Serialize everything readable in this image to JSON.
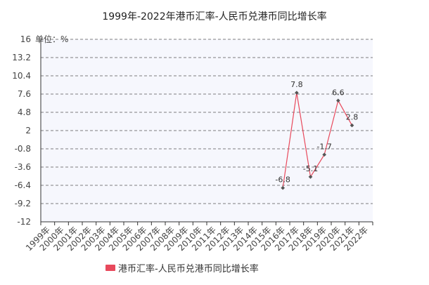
{
  "chart_data": {
    "type": "line",
    "title": "1999年-2022年港币汇率-人民币兑港币同比增长率",
    "unit_label": "单位：%",
    "categories": [
      "1999年",
      "2000年",
      "2001年",
      "2002年",
      "2003年",
      "2004年",
      "2005年",
      "2006年",
      "2007年",
      "2008年",
      "2009年",
      "2010年",
      "2011年",
      "2012年",
      "2013年",
      "2014年",
      "2015年",
      "2016年",
      "2017年",
      "2018年",
      "2019年",
      "2020年",
      "2021年",
      "2022年"
    ],
    "series": [
      {
        "name": "港币汇率-人民币兑港币同比增长率",
        "values": [
          null,
          null,
          null,
          null,
          null,
          null,
          null,
          null,
          null,
          null,
          null,
          null,
          null,
          null,
          null,
          null,
          null,
          -6.8,
          7.8,
          -5.1,
          -1.7,
          6.6,
          2.8,
          null
        ],
        "data_labels": [
          null,
          null,
          null,
          null,
          null,
          null,
          null,
          null,
          null,
          null,
          null,
          null,
          null,
          null,
          null,
          null,
          null,
          "-6.8",
          "7.8",
          "-5.1",
          "-1.7",
          "6.6",
          "2.8",
          null
        ]
      }
    ],
    "y_ticks": [
      "16",
      "13.2",
      "10.4",
      "7.6",
      "4.8",
      "2",
      "-0.8",
      "-3.6",
      "-6.4",
      "-9.2",
      "-12"
    ],
    "ylim": [
      -12,
      16
    ],
    "grid": true,
    "legend_position": "bottom-left",
    "colors": {
      "line": "#e8495c",
      "point": "#555555",
      "grid": "#555555",
      "plot_bg": "#f6f7fd",
      "legend_swatch": "#e8495c"
    }
  }
}
